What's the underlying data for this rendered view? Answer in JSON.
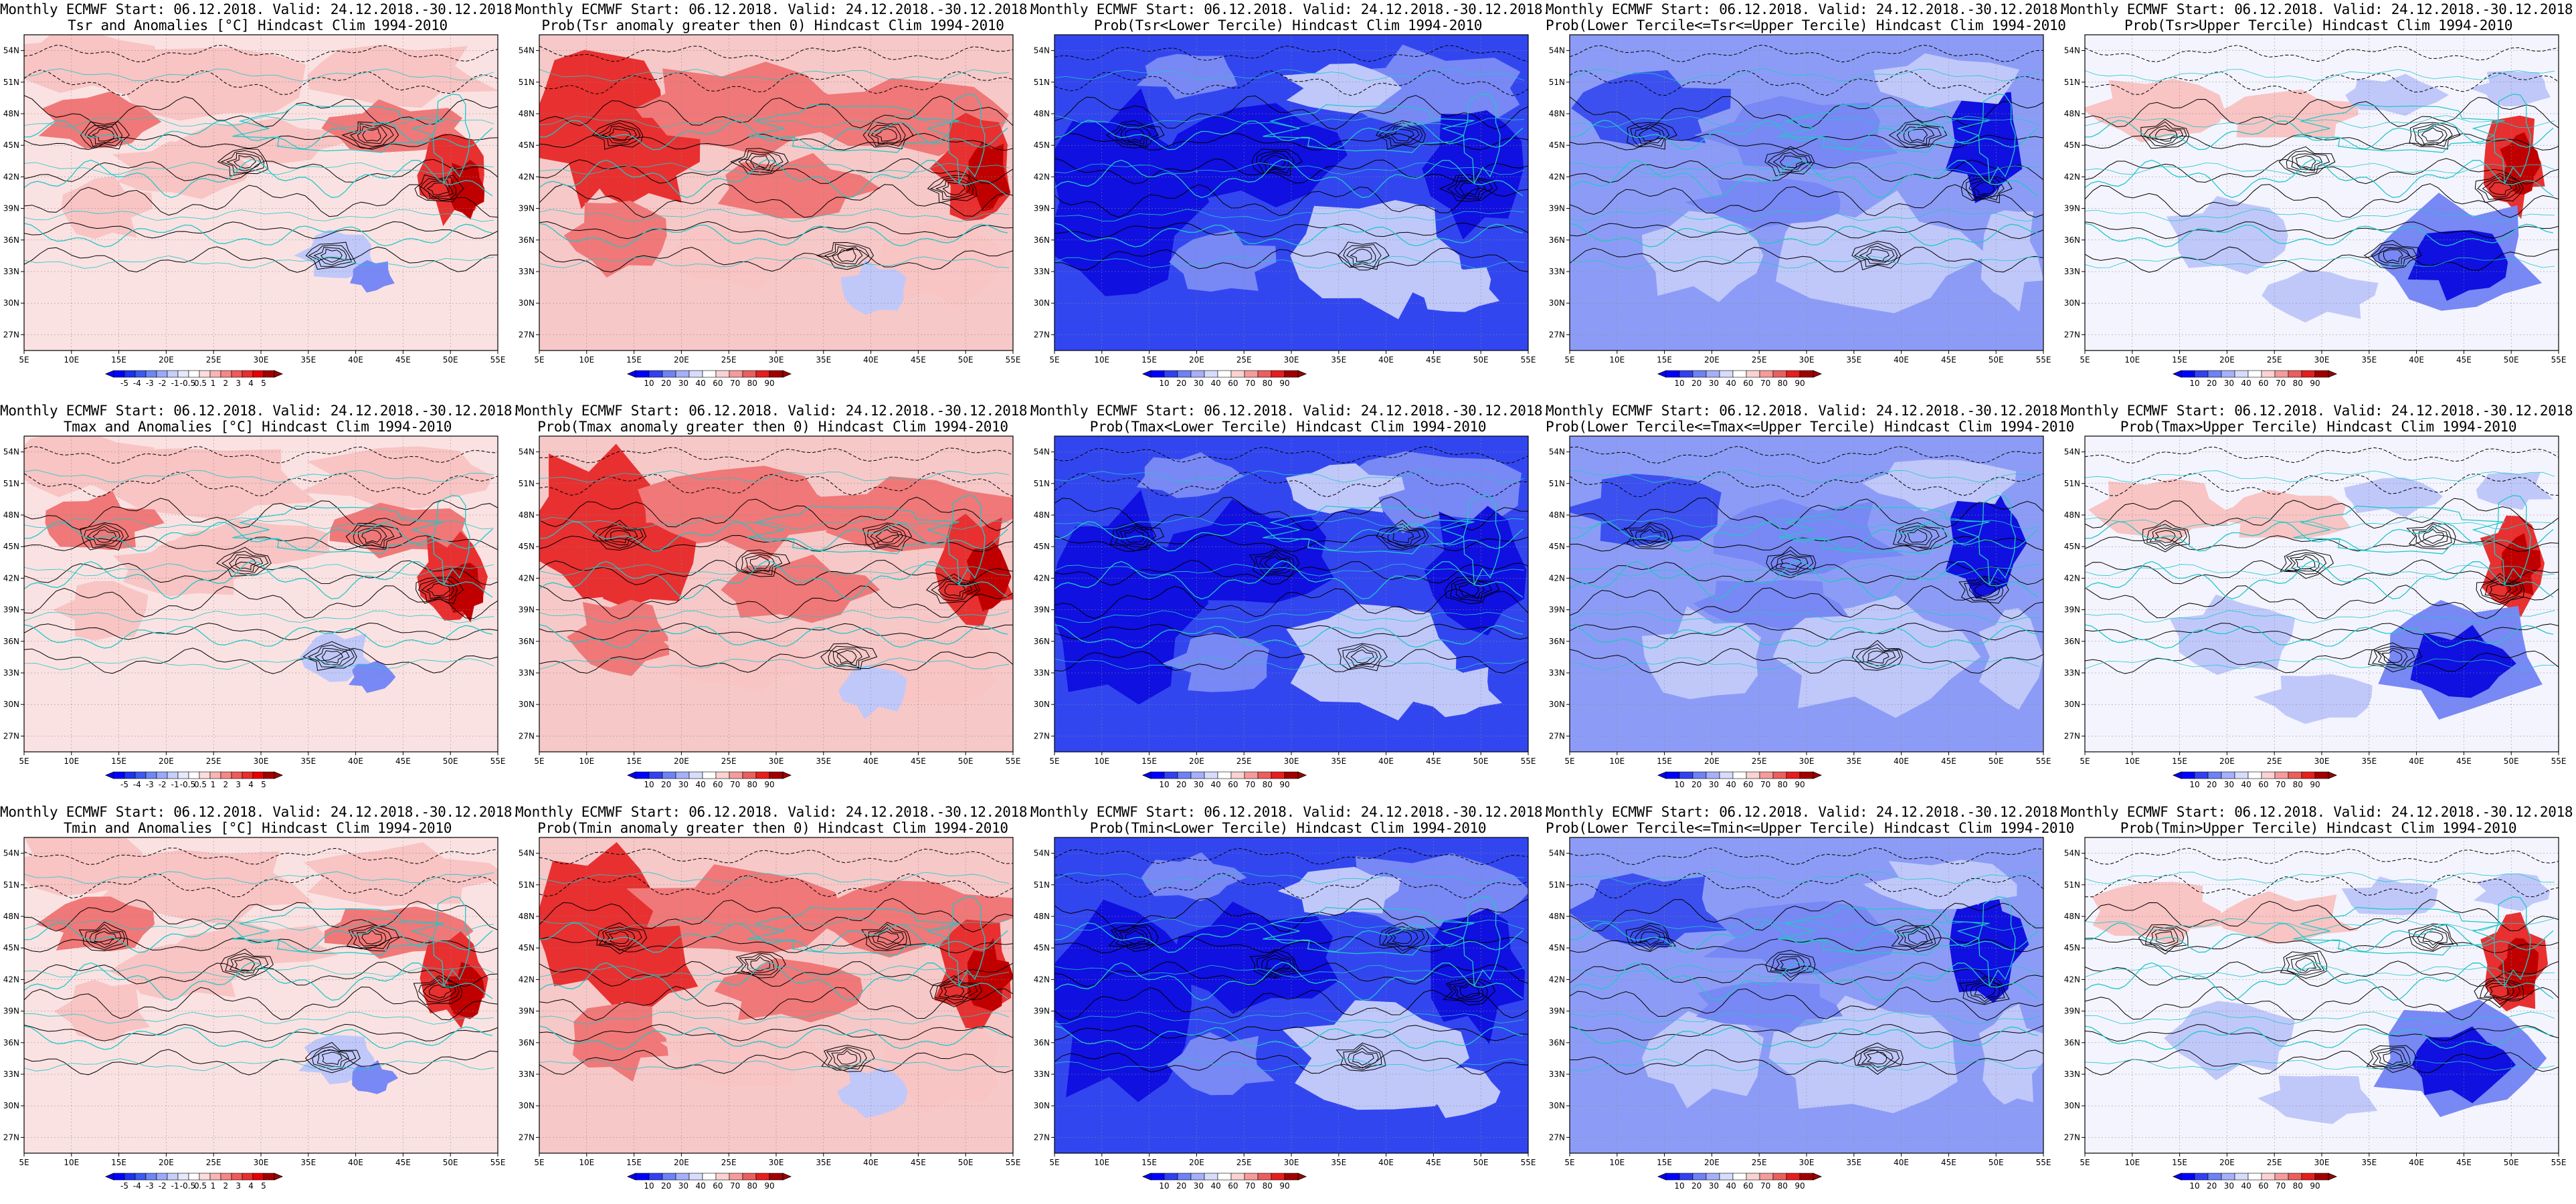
{
  "panels": [
    {
      "row": 0,
      "col": 0,
      "title_line1": "Monthly ECMWF Start: 06.12.2018. Valid: 24.12.2018.-30.12.2018.",
      "title_line2": "Tsr and Anomalies [°C] Hindcast Clim 1994-2010",
      "field": "anom",
      "variable": "Tsr",
      "colorbar": "anom"
    },
    {
      "row": 0,
      "col": 1,
      "title_line1": "Monthly ECMWF Start: 06.12.2018. Valid: 24.12.2018.-30.12.2018.",
      "title_line2": "Prob(Tsr anomaly greater then 0) Hindcast Clim 1994-2010",
      "field": "prob_gt0",
      "variable": "Tsr",
      "colorbar": "prob"
    },
    {
      "row": 0,
      "col": 2,
      "title_line1": "Monthly ECMWF Start: 06.12.2018. Valid: 24.12.2018.-30.12.2018.",
      "title_line2": "Prob(Tsr<Lower Tercile) Hindcast Clim 1994-2010",
      "field": "lower",
      "variable": "Tsr",
      "colorbar": "prob"
    },
    {
      "row": 0,
      "col": 3,
      "title_line1": "Monthly ECMWF Start: 06.12.2018. Valid: 24.12.2018.-30.12.2018.",
      "title_line2": "Prob(Lower Tercile<=Tsr<=Upper Tercile) Hindcast Clim 1994-2010",
      "field": "middle",
      "variable": "Tsr",
      "colorbar": "prob"
    },
    {
      "row": 0,
      "col": 4,
      "title_line1": "Monthly ECMWF Start: 06.12.2018. Valid: 24.12.2018.-30.12.2018.",
      "title_line2": "Prob(Tsr>Upper Tercile) Hindcast Clim 1994-2010",
      "field": "upper",
      "variable": "Tsr",
      "colorbar": "prob"
    },
    {
      "row": 1,
      "col": 0,
      "title_line1": "Monthly ECMWF Start: 06.12.2018. Valid: 24.12.2018.-30.12.2018.",
      "title_line2": "Tmax and Anomalies [°C] Hindcast Clim 1994-2010",
      "field": "anom",
      "variable": "Tmax",
      "colorbar": "anom"
    },
    {
      "row": 1,
      "col": 1,
      "title_line1": "Monthly ECMWF Start: 06.12.2018. Valid: 24.12.2018.-30.12.2018.",
      "title_line2": "Prob(Tmax anomaly greater then 0) Hindcast Clim 1994-2010",
      "field": "prob_gt0",
      "variable": "Tmax",
      "colorbar": "prob"
    },
    {
      "row": 1,
      "col": 2,
      "title_line1": "Monthly ECMWF Start: 06.12.2018. Valid: 24.12.2018.-30.12.2018.",
      "title_line2": "Prob(Tmax<Lower Tercile) Hindcast Clim 1994-2010",
      "field": "lower",
      "variable": "Tmax",
      "colorbar": "prob"
    },
    {
      "row": 1,
      "col": 3,
      "title_line1": "Monthly ECMWF Start: 06.12.2018. Valid: 24.12.2018.-30.12.2018.",
      "title_line2": "Prob(Lower Tercile<=Tmax<=Upper Tercile) Hindcast Clim 1994-2010",
      "field": "middle",
      "variable": "Tmax",
      "colorbar": "prob"
    },
    {
      "row": 1,
      "col": 4,
      "title_line1": "Monthly ECMWF Start: 06.12.2018. Valid: 24.12.2018.-30.12.2018.",
      "title_line2": "Prob(Tmax>Upper Tercile) Hindcast Clim 1994-2010",
      "field": "upper",
      "variable": "Tmax",
      "colorbar": "prob"
    },
    {
      "row": 2,
      "col": 0,
      "title_line1": "Monthly ECMWF Start: 06.12.2018. Valid: 24.12.2018.-30.12.2018.",
      "title_line2": "Tmin and Anomalies [°C] Hindcast Clim 1994-2010",
      "field": "anom",
      "variable": "Tmin",
      "colorbar": "anom"
    },
    {
      "row": 2,
      "col": 1,
      "title_line1": "Monthly ECMWF Start: 06.12.2018. Valid: 24.12.2018.-30.12.2018.",
      "title_line2": "Prob(Tmin anomaly greater then 0) Hindcast Clim 1994-2010",
      "field": "prob_gt0",
      "variable": "Tmin",
      "colorbar": "prob"
    },
    {
      "row": 2,
      "col": 2,
      "title_line1": "Monthly ECMWF Start: 06.12.2018. Valid: 24.12.2018.-30.12.2018.",
      "title_line2": "Prob(Tmin<Lower Tercile) Hindcast Clim 1994-2010",
      "field": "lower",
      "variable": "Tmin",
      "colorbar": "prob"
    },
    {
      "row": 2,
      "col": 3,
      "title_line1": "Monthly ECMWF Start: 06.12.2018. Valid: 24.12.2018.-30.12.2018.",
      "title_line2": "Prob(Lower Tercile<=Tmin<=Upper Tercile) Hindcast Clim 1994-2010",
      "field": "middle",
      "variable": "Tmin",
      "colorbar": "prob"
    },
    {
      "row": 2,
      "col": 4,
      "title_line1": "Monthly ECMWF Start: 06.12.2018. Valid: 24.12.2018.-30.12.2018.",
      "title_line2": "Prob(Tmin>Upper Tercile) Hindcast Clim 1994-2010",
      "field": "upper",
      "variable": "Tmin",
      "colorbar": "prob"
    }
  ],
  "map": {
    "lon_labels": [
      "5E",
      "10E",
      "15E",
      "20E",
      "25E",
      "30E",
      "35E",
      "40E",
      "45E",
      "50E",
      "55E"
    ],
    "lat_labels": [
      "54N",
      "51N",
      "48N",
      "45N",
      "42N",
      "39N",
      "36N",
      "33N",
      "30N",
      "27N"
    ],
    "lon_range": [
      5,
      55
    ],
    "lat_range": [
      25,
      55
    ]
  },
  "colorbars": {
    "anom": {
      "labels": [
        "-5",
        "-4",
        "-3",
        "-2",
        "-1",
        "-0.5",
        "0.5",
        "1",
        "2",
        "3",
        "4",
        "5"
      ],
      "colors": [
        "#0000ff",
        "#1e32f0",
        "#3c5af0",
        "#6e87f5",
        "#9baaf8",
        "#c6cefa",
        "#e6e9fc",
        "#ffffff",
        "#fcdcdc",
        "#fab4b4",
        "#f58787",
        "#f05a5a",
        "#eb2d2d",
        "#e60000",
        "#a00000"
      ]
    },
    "prob": {
      "labels": [
        "10",
        "20",
        "30",
        "40",
        "60",
        "70",
        "80",
        "90"
      ],
      "colors": [
        "#0000ff",
        "#3241f0",
        "#6e82f5",
        "#a5b0f8",
        "#d7dcfb",
        "#ffffff",
        "#fad2d2",
        "#f59b9b",
        "#eb5f5f",
        "#e61e1e",
        "#a00000"
      ]
    }
  },
  "colors": {
    "land_contour": "#000000",
    "coastline": "#20c8c8",
    "red_dark": "#c00000",
    "red_strong": "#e83030",
    "red_mid": "#f07878",
    "red_light": "#f8c4c4",
    "blue_dark": "#1010e0",
    "blue_strong": "#3c50f0",
    "blue_mid": "#7888f5",
    "blue_light": "#c0c8fa"
  }
}
